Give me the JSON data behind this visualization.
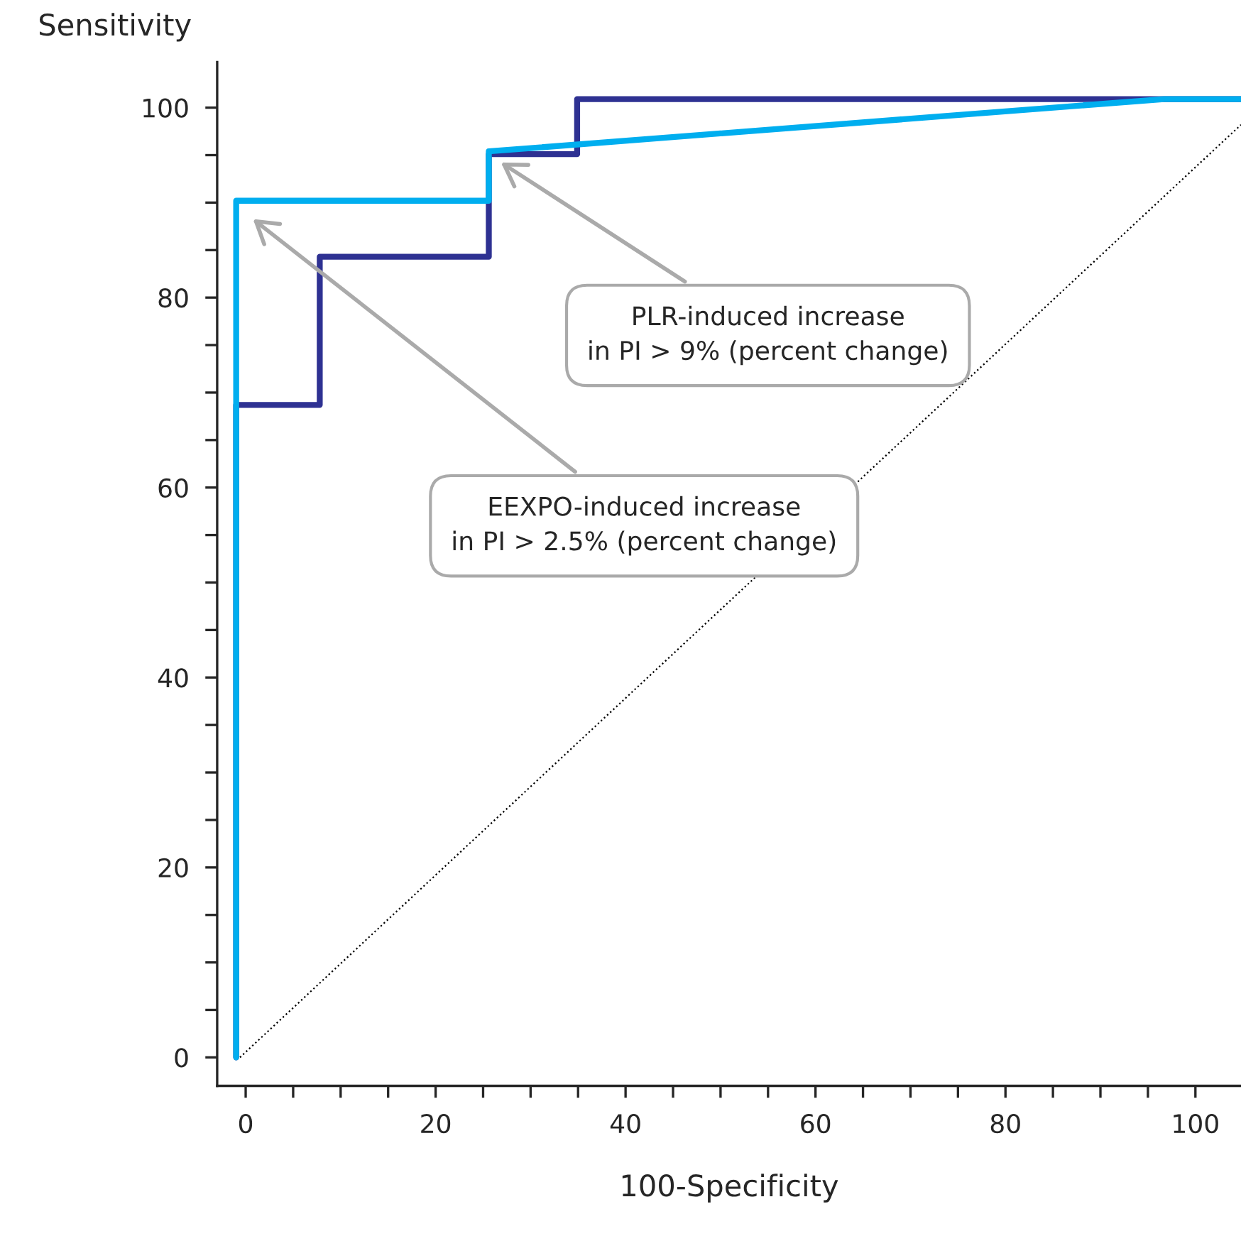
{
  "chart_data": {
    "type": "line",
    "xlabel": "100-Specificity",
    "ylabel": "Sensitivity",
    "series": [
      {
        "color": "#2e3192",
        "x": [
          -1,
          -1,
          7.8,
          7.8,
          25.6,
          25.6,
          34.9,
          34.9,
          104.8
        ],
        "values": [
          0,
          68.7,
          68.7,
          84.3,
          84.3,
          95.1,
          95.1,
          100.9,
          100.9
        ]
      },
      {
        "color": "#00aeef",
        "x": [
          -1,
          -1,
          25.6,
          25.6,
          96.7,
          104.8
        ],
        "values": [
          0,
          90.2,
          90.2,
          95.4,
          100.9,
          100.9
        ]
      },
      {
        "color": "#000000",
        "line_style": "dotted",
        "x": [
          -0.6,
          104.8
        ],
        "values": [
          0,
          98.2
        ]
      }
    ],
    "xlim": [
      -3,
      104.8
    ],
    "ylim": [
      -3,
      104.8
    ],
    "xticks": [
      0,
      {
        "value": 5,
        "label": null
      },
      {
        "value": 10,
        "label": null
      },
      {
        "value": 15,
        "label": null
      },
      20,
      {
        "value": 25,
        "label": null
      },
      {
        "value": 30,
        "label": null
      },
      {
        "value": 35,
        "label": null
      },
      40,
      {
        "value": 45,
        "label": null
      },
      {
        "value": 50,
        "label": null
      },
      {
        "value": 55,
        "label": null
      },
      60,
      {
        "value": 65,
        "label": null
      },
      {
        "value": 70,
        "label": null
      },
      {
        "value": 75,
        "label": null
      },
      80,
      {
        "value": 85,
        "label": null
      },
      {
        "value": 90,
        "label": null
      },
      {
        "value": 95,
        "label": null
      },
      100
    ],
    "yticks": [
      0,
      {
        "value": 5,
        "label": null
      },
      {
        "value": 10,
        "label": null
      },
      {
        "value": 15,
        "label": null
      },
      20,
      {
        "value": 25,
        "label": null
      },
      {
        "value": 30,
        "label": null
      },
      {
        "value": 35,
        "label": null
      },
      40,
      {
        "value": 45,
        "label": null
      },
      {
        "value": 50,
        "label": null
      },
      {
        "value": 55,
        "label": null
      },
      60,
      {
        "value": 65,
        "label": null
      },
      {
        "value": 70,
        "label": null
      },
      {
        "value": 75,
        "label": null
      },
      80,
      {
        "value": 85,
        "label": null
      },
      {
        "value": 90,
        "label": null
      },
      {
        "value": 95,
        "label": null
      },
      100
    ],
    "annotations": [
      "PLR-induced increase\nin PI > 9% (percent change)",
      "EEXPO-induced increase\nin PI > 2.5% (percent change)"
    ],
    "grid": false,
    "legend": false
  }
}
